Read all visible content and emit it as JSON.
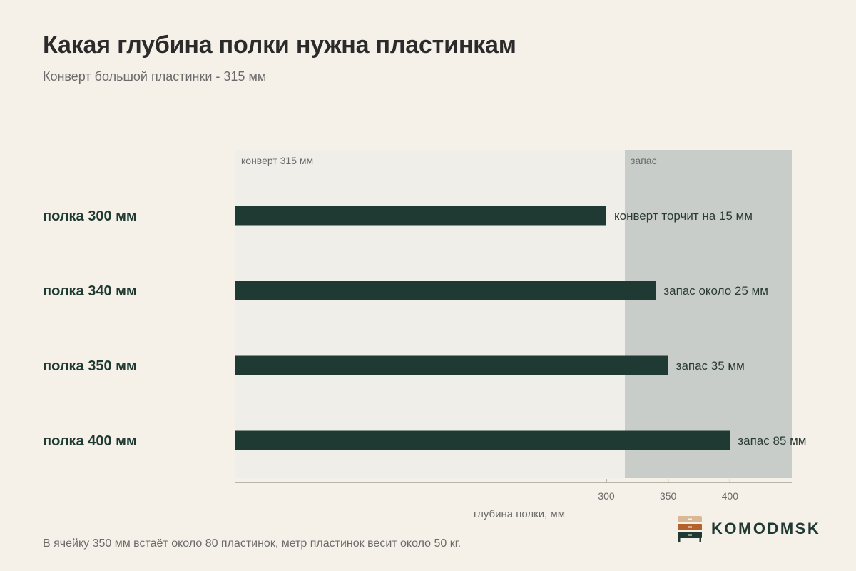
{
  "header": {
    "title": "Какая глубина полки нужна пластинкам",
    "subtitle": "Конверт большой пластинки - 315 мм"
  },
  "chart_data": {
    "type": "bar",
    "orientation": "horizontal",
    "categories": [
      "полка 300 мм",
      "полка 340 мм",
      "полка 350 мм",
      "полка 400 мм"
    ],
    "values": [
      300,
      340,
      350,
      400
    ],
    "data_labels": [
      "конверт торчит на 15 мм",
      "запас около 25 мм",
      "запас 35 мм",
      "запас 85 мм"
    ],
    "xlabel": "глубина полки, мм",
    "xticks": [
      300,
      350,
      400
    ],
    "xlim": [
      0,
      450
    ],
    "regions": [
      {
        "label": "конверт 315 мм",
        "from": 0,
        "to": 315,
        "color": "#f0eee9"
      },
      {
        "label": "запас",
        "from": 315,
        "to": 450,
        "color": "#c8cdca"
      }
    ],
    "bar_color": "#1f3a32",
    "grid": false
  },
  "footer": {
    "note": "В ячейку 350 мм встаёт около 80 пластинок, метр пластинок весит около 50 кг.",
    "brand": "KOMODMSK"
  },
  "colors": {
    "background": "#f5f0e8",
    "bar": "#1f3a32",
    "logo_top": "#d9b896",
    "logo_middle": "#b5622a",
    "logo_bottom": "#1f3a32"
  }
}
